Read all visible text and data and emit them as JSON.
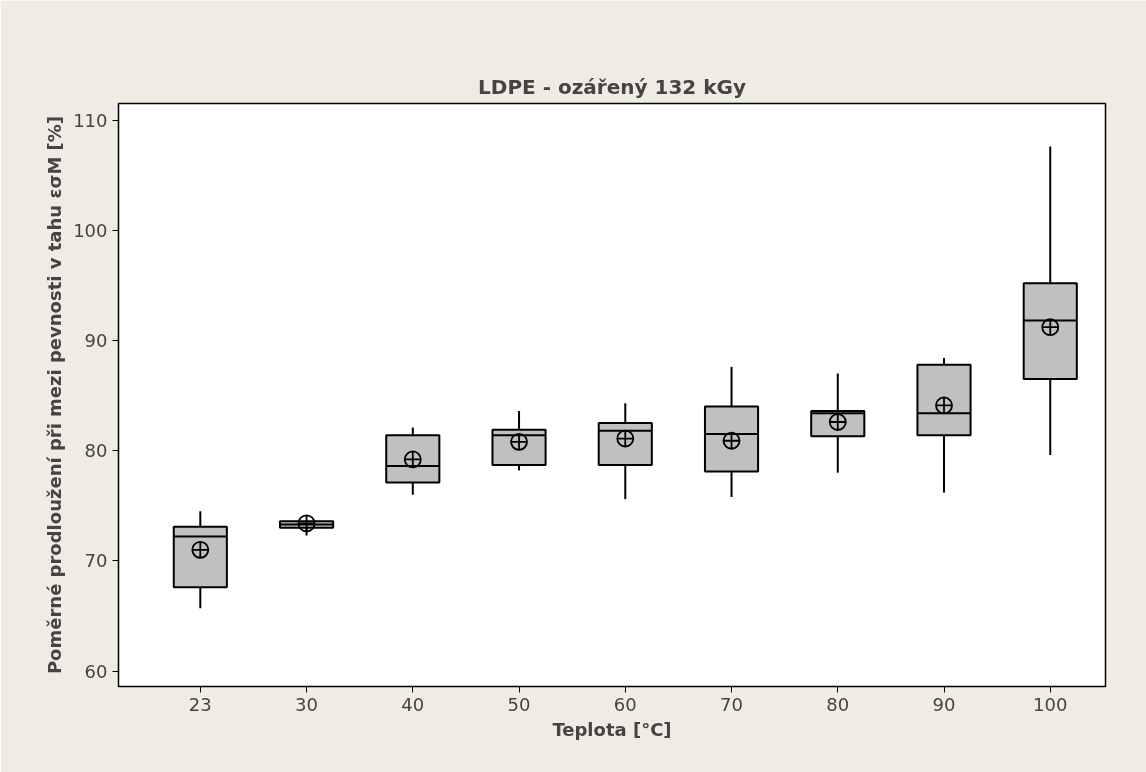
{
  "chart_data": {
    "type": "box",
    "title": "LDPE - ozářený 132 kGy",
    "xlabel": "Teplota [°C]",
    "ylabel": "Poměrné prodloužení při mezi pevnosti v tahu εσM [%]",
    "categories": [
      "23",
      "30",
      "40",
      "50",
      "60",
      "70",
      "80",
      "90",
      "100"
    ],
    "color": "#c0c0c0",
    "boxes": [
      {
        "low": 65.7,
        "q1": 67.6,
        "median": 72.2,
        "q3": 73.1,
        "high": 74.5,
        "mean": 71.0
      },
      {
        "low": 72.3,
        "q1": 73.0,
        "median": 73.3,
        "q3": 73.6,
        "high": 73.7,
        "mean": 73.4
      },
      {
        "low": 76.0,
        "q1": 77.1,
        "median": 78.6,
        "q3": 81.4,
        "high": 82.1,
        "mean": 79.2
      },
      {
        "low": 78.2,
        "q1": 78.7,
        "median": 81.4,
        "q3": 81.9,
        "high": 83.6,
        "mean": 80.8
      },
      {
        "low": 75.6,
        "q1": 78.7,
        "median": 81.8,
        "q3": 82.5,
        "high": 84.3,
        "mean": 81.1
      },
      {
        "low": 75.8,
        "q1": 78.1,
        "median": 81.5,
        "q3": 84.0,
        "high": 87.6,
        "mean": 80.9
      },
      {
        "low": 78.0,
        "q1": 81.3,
        "median": 83.4,
        "q3": 83.6,
        "high": 87.0,
        "mean": 82.6
      },
      {
        "low": 76.2,
        "q1": 81.4,
        "median": 83.4,
        "q3": 87.8,
        "high": 88.4,
        "mean": 84.1
      },
      {
        "low": 79.6,
        "q1": 86.5,
        "median": 91.8,
        "q3": 95.2,
        "high": 107.6,
        "mean": 91.2
      }
    ],
    "ylim": [
      58.6,
      111.5
    ],
    "yticks": [
      60,
      70,
      80,
      90,
      100,
      110
    ],
    "grid": false
  }
}
